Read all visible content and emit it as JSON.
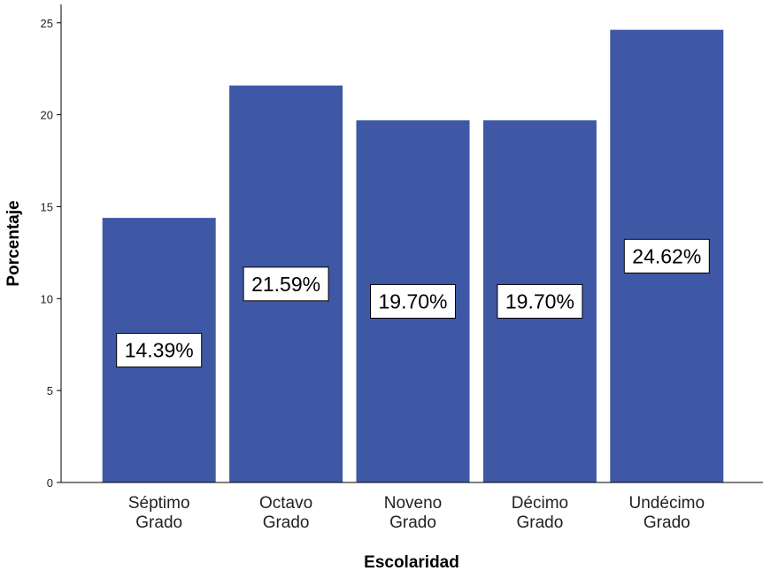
{
  "chart_data": {
    "type": "bar",
    "categories": [
      [
        "Séptimo",
        "Grado"
      ],
      [
        "Octavo",
        "Grado"
      ],
      [
        "Noveno",
        "Grado"
      ],
      [
        "Décimo",
        "Grado"
      ],
      [
        "Undécimo",
        "Grado"
      ]
    ],
    "values": [
      14.39,
      21.59,
      19.7,
      19.7,
      24.62
    ],
    "data_labels": [
      "14.39%",
      "21.59%",
      "19.70%",
      "19.70%",
      "24.62%"
    ],
    "xlabel": "Escolaridad",
    "ylabel": "Porcentaje",
    "ylim": [
      0,
      26
    ],
    "yticks": [
      0,
      5,
      10,
      15,
      20,
      25
    ],
    "grid": false,
    "colors": {
      "bar": "#3f58a6",
      "axis": "#000000",
      "label_box_fill": "#ffffff",
      "label_box_stroke": "#000000"
    }
  }
}
